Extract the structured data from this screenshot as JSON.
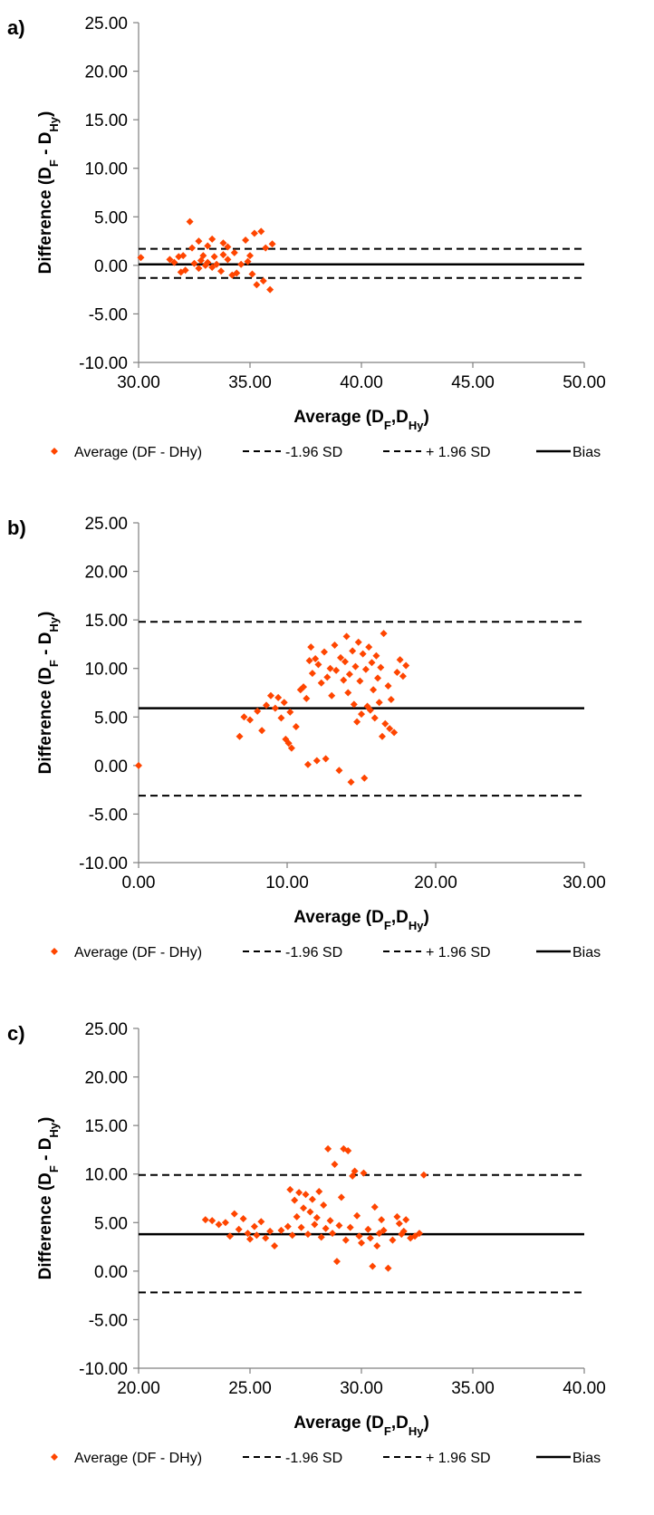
{
  "colors": {
    "points": "#ff4500",
    "lines": "#000000",
    "axis": "#808080"
  },
  "legend": {
    "points": "Average (DF - DHy)",
    "lower": "-1.96 SD",
    "upper": "+ 1.96 SD",
    "bias": "Bias"
  },
  "chart_data": [
    {
      "type": "scatter",
      "panel_label": "a)",
      "ylabel": {
        "main": "Difference (D",
        "s1": "F",
        "mid": " - D",
        "s2": "Hy",
        "end": ")"
      },
      "xlabel": {
        "main": "Average (D",
        "s1": "F",
        "mid": ",D",
        "s2": "Hy",
        "end": ")"
      },
      "xlim": [
        30,
        50
      ],
      "ylim": [
        -10,
        25
      ],
      "xticks": [
        "30.00",
        "35.00",
        "40.00",
        "45.00",
        "50.00"
      ],
      "yticks": [
        "-10.00",
        "-5.00",
        "0.00",
        "5.00",
        "10.00",
        "15.00",
        "20.00",
        "25.00"
      ],
      "bias": 0.1,
      "upper": 1.7,
      "lower": -1.3,
      "points": [
        [
          30.1,
          0.8
        ],
        [
          31.4,
          0.6
        ],
        [
          31.6,
          0.3
        ],
        [
          31.8,
          0.9
        ],
        [
          31.9,
          -0.7
        ],
        [
          32.0,
          1.0
        ],
        [
          32.1,
          -0.5
        ],
        [
          32.3,
          4.5
        ],
        [
          32.4,
          1.8
        ],
        [
          32.5,
          0.2
        ],
        [
          32.7,
          2.5
        ],
        [
          32.7,
          -0.3
        ],
        [
          32.8,
          0.5
        ],
        [
          32.9,
          1.0
        ],
        [
          33.0,
          0.0
        ],
        [
          33.1,
          2.0
        ],
        [
          33.1,
          0.3
        ],
        [
          33.3,
          2.7
        ],
        [
          33.3,
          -0.2
        ],
        [
          33.4,
          0.9
        ],
        [
          33.5,
          0.1
        ],
        [
          33.7,
          -0.6
        ],
        [
          33.8,
          2.3
        ],
        [
          33.8,
          1.1
        ],
        [
          34.0,
          1.9
        ],
        [
          34.0,
          0.6
        ],
        [
          34.2,
          -1.0
        ],
        [
          34.3,
          1.3
        ],
        [
          34.6,
          0.1
        ],
        [
          34.8,
          2.6
        ],
        [
          34.9,
          0.4
        ],
        [
          35.0,
          1.0
        ],
        [
          35.1,
          -0.9
        ],
        [
          35.2,
          3.3
        ],
        [
          35.3,
          -2.0
        ],
        [
          35.5,
          3.5
        ],
        [
          35.6,
          -1.6
        ],
        [
          35.7,
          1.8
        ],
        [
          35.9,
          -2.5
        ],
        [
          36.0,
          2.2
        ],
        [
          34.4,
          -0.8
        ]
      ]
    },
    {
      "type": "scatter",
      "panel_label": "b)",
      "ylabel": {
        "main": "Difference (D",
        "s1": "F",
        "mid": " - D",
        "s2": "Hy",
        "end": ")"
      },
      "xlabel": {
        "main": "Average (D",
        "s1": "F",
        "mid": ",D",
        "s2": "Hy",
        "end": ")"
      },
      "xlim": [
        0,
        30
      ],
      "ylim": [
        -10,
        25
      ],
      "xticks": [
        "0.00",
        "10.00",
        "20.00",
        "30.00"
      ],
      "yticks": [
        "-10.00",
        "-5.00",
        "0.00",
        "5.00",
        "10.00",
        "15.00",
        "20.00",
        "25.00"
      ],
      "bias": 5.9,
      "upper": 14.8,
      "lower": -3.1,
      "points": [
        [
          0.0,
          0.0
        ],
        [
          6.8,
          3.0
        ],
        [
          7.1,
          5.0
        ],
        [
          7.5,
          4.7
        ],
        [
          8.0,
          5.6
        ],
        [
          8.3,
          3.6
        ],
        [
          8.6,
          6.2
        ],
        [
          8.9,
          7.2
        ],
        [
          9.2,
          5.9
        ],
        [
          9.4,
          7.0
        ],
        [
          9.6,
          4.9
        ],
        [
          9.8,
          6.5
        ],
        [
          9.9,
          2.7
        ],
        [
          10.1,
          2.3
        ],
        [
          10.2,
          5.5
        ],
        [
          10.3,
          1.8
        ],
        [
          10.6,
          4.0
        ],
        [
          10.9,
          7.8
        ],
        [
          11.1,
          8.1
        ],
        [
          11.3,
          6.9
        ],
        [
          11.4,
          0.1
        ],
        [
          11.5,
          10.8
        ],
        [
          11.6,
          12.2
        ],
        [
          11.7,
          9.5
        ],
        [
          11.9,
          11.0
        ],
        [
          12.0,
          0.5
        ],
        [
          12.1,
          10.4
        ],
        [
          12.3,
          8.5
        ],
        [
          12.5,
          11.7
        ],
        [
          12.6,
          0.7
        ],
        [
          12.7,
          9.1
        ],
        [
          12.9,
          10.0
        ],
        [
          13.0,
          7.2
        ],
        [
          13.2,
          12.4
        ],
        [
          13.3,
          9.8
        ],
        [
          13.5,
          -0.5
        ],
        [
          13.6,
          11.1
        ],
        [
          13.8,
          8.8
        ],
        [
          13.9,
          10.7
        ],
        [
          14.0,
          13.3
        ],
        [
          14.1,
          7.5
        ],
        [
          14.2,
          9.4
        ],
        [
          14.3,
          -1.7
        ],
        [
          14.4,
          11.8
        ],
        [
          14.5,
          6.3
        ],
        [
          14.6,
          10.2
        ],
        [
          14.7,
          4.5
        ],
        [
          14.8,
          12.7
        ],
        [
          14.9,
          8.7
        ],
        [
          15.0,
          5.3
        ],
        [
          15.1,
          11.5
        ],
        [
          15.2,
          -1.3
        ],
        [
          15.3,
          9.9
        ],
        [
          15.4,
          6.1
        ],
        [
          15.5,
          12.2
        ],
        [
          15.6,
          5.7
        ],
        [
          15.7,
          10.6
        ],
        [
          15.8,
          7.8
        ],
        [
          15.9,
          4.9
        ],
        [
          16.0,
          11.3
        ],
        [
          16.1,
          9.0
        ],
        [
          16.2,
          6.5
        ],
        [
          16.3,
          10.1
        ],
        [
          16.4,
          3.0
        ],
        [
          16.5,
          13.6
        ],
        [
          16.6,
          4.3
        ],
        [
          16.8,
          8.2
        ],
        [
          16.9,
          3.8
        ],
        [
          17.0,
          6.8
        ],
        [
          17.2,
          3.4
        ],
        [
          17.4,
          9.6
        ],
        [
          17.6,
          10.9
        ],
        [
          17.8,
          9.2
        ],
        [
          18.0,
          10.3
        ]
      ]
    },
    {
      "type": "scatter",
      "panel_label": "c)",
      "ylabel": {
        "main": "Difference (D",
        "s1": "F",
        "mid": " - D",
        "s2": "Hy",
        "end": ")"
      },
      "xlabel": {
        "main": "Average (D",
        "s1": "F",
        "mid": ",D",
        "s2": "Hy",
        "end": ")"
      },
      "xlim": [
        20,
        40
      ],
      "ylim": [
        -10,
        25
      ],
      "xticks": [
        "20.00",
        "25.00",
        "30.00",
        "35.00",
        "40.00"
      ],
      "yticks": [
        "-10.00",
        "-5.00",
        "0.00",
        "5.00",
        "10.00",
        "15.00",
        "20.00",
        "25.00"
      ],
      "bias": 3.8,
      "upper": 9.9,
      "lower": -2.2,
      "points": [
        [
          23.0,
          5.3
        ],
        [
          23.3,
          5.2
        ],
        [
          23.6,
          4.8
        ],
        [
          23.9,
          5.0
        ],
        [
          24.1,
          3.6
        ],
        [
          24.3,
          5.9
        ],
        [
          24.5,
          4.3
        ],
        [
          24.7,
          5.4
        ],
        [
          24.9,
          3.9
        ],
        [
          25.0,
          3.3
        ],
        [
          25.2,
          4.6
        ],
        [
          25.3,
          3.7
        ],
        [
          25.5,
          5.1
        ],
        [
          25.7,
          3.4
        ],
        [
          25.9,
          4.1
        ],
        [
          26.1,
          2.6
        ],
        [
          26.4,
          4.2
        ],
        [
          26.7,
          4.6
        ],
        [
          26.8,
          8.4
        ],
        [
          26.9,
          3.7
        ],
        [
          27.0,
          7.3
        ],
        [
          27.1,
          5.6
        ],
        [
          27.2,
          8.1
        ],
        [
          27.3,
          4.5
        ],
        [
          27.4,
          6.5
        ],
        [
          27.5,
          7.9
        ],
        [
          27.6,
          3.8
        ],
        [
          27.7,
          6.1
        ],
        [
          27.8,
          7.4
        ],
        [
          27.9,
          4.8
        ],
        [
          28.0,
          5.5
        ],
        [
          28.1,
          8.2
        ],
        [
          28.2,
          3.5
        ],
        [
          28.3,
          6.8
        ],
        [
          28.4,
          4.4
        ],
        [
          28.5,
          12.6
        ],
        [
          28.6,
          5.2
        ],
        [
          28.7,
          3.9
        ],
        [
          28.8,
          11.0
        ],
        [
          28.9,
          1.0
        ],
        [
          29.0,
          4.7
        ],
        [
          29.1,
          7.6
        ],
        [
          29.2,
          12.6
        ],
        [
          29.3,
          3.2
        ],
        [
          29.4,
          12.4
        ],
        [
          29.5,
          4.5
        ],
        [
          29.6,
          9.8
        ],
        [
          29.7,
          10.3
        ],
        [
          29.8,
          5.7
        ],
        [
          29.9,
          3.6
        ],
        [
          30.0,
          2.9
        ],
        [
          30.1,
          10.1
        ],
        [
          30.3,
          4.3
        ],
        [
          30.4,
          3.4
        ],
        [
          30.5,
          0.5
        ],
        [
          30.6,
          6.6
        ],
        [
          30.7,
          2.6
        ],
        [
          30.8,
          3.9
        ],
        [
          30.9,
          5.3
        ],
        [
          31.0,
          4.2
        ],
        [
          31.2,
          0.3
        ],
        [
          31.4,
          3.2
        ],
        [
          31.6,
          5.6
        ],
        [
          31.7,
          4.9
        ],
        [
          31.8,
          3.8
        ],
        [
          31.9,
          4.1
        ],
        [
          32.0,
          5.3
        ],
        [
          32.2,
          3.4
        ],
        [
          32.4,
          3.6
        ],
        [
          32.6,
          3.9
        ],
        [
          32.8,
          9.9
        ]
      ]
    }
  ]
}
